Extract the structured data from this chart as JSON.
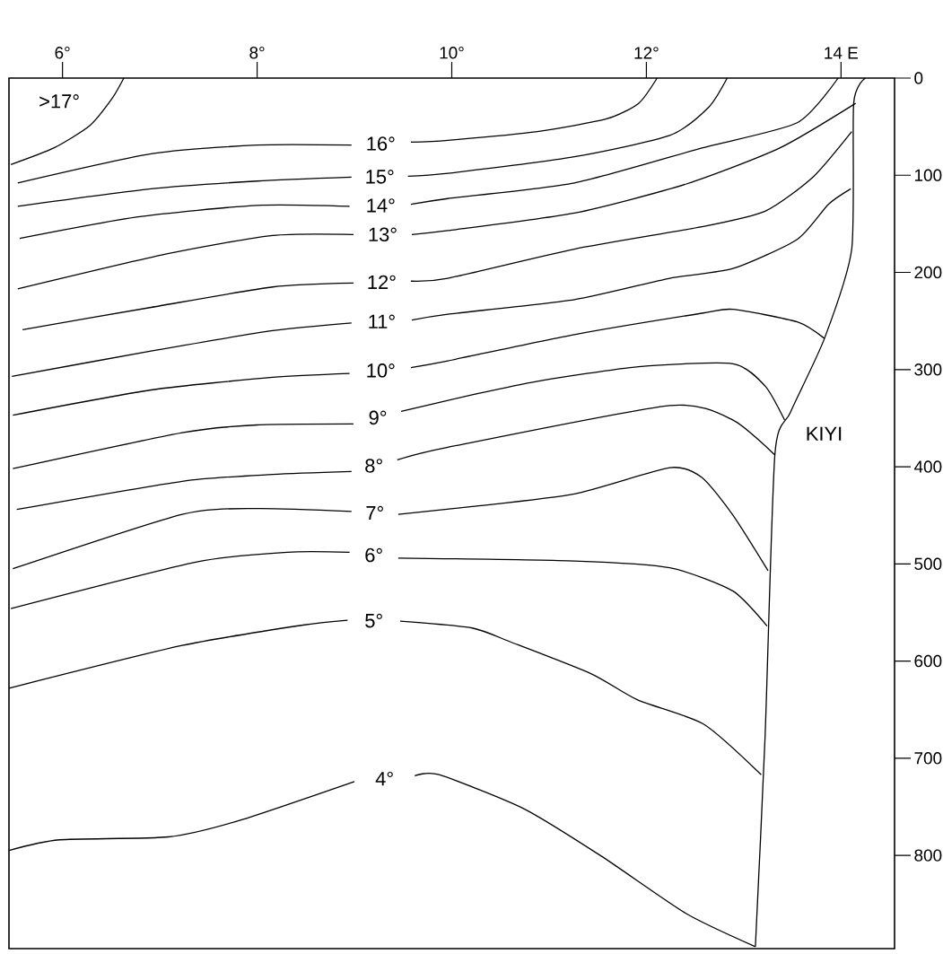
{
  "chart_data": {
    "type": "line",
    "marker": "none",
    "line_style": "solid",
    "xlim": [
      5.45,
      14.55
    ],
    "ylim": [
      896,
      0
    ],
    "xticks": [
      {
        "value": 6,
        "label": "6°"
      },
      {
        "value": 8,
        "label": "8°"
      },
      {
        "value": 10,
        "label": "10°"
      },
      {
        "value": 12,
        "label": "12°"
      },
      {
        "value": 14,
        "label": "14 E"
      }
    ],
    "yticks": [
      0,
      100,
      200,
      300,
      400,
      500,
      600,
      700,
      800
    ],
    "annotations": [
      ">17°",
      "KIYI"
    ],
    "series": [
      {
        "color": "#000000",
        "x": [
          5.47,
          5.91,
          6.28,
          6.51,
          6.63
        ],
        "values": [
          89,
          72,
          49,
          21,
          0
        ]
      },
      {
        "name": "16°",
        "color": "#000000",
        "x": [
          5.54,
          6.91,
          8.0,
          8.97,
          9.27,
          9.58,
          9.96,
          10.88,
          11.59,
          11.92,
          12.11
        ],
        "values": [
          108,
          78,
          69,
          69,
          null,
          66,
          64,
          55,
          42,
          26,
          0
        ]
      },
      {
        "name": "15°",
        "color": "#000000",
        "x": [
          5.54,
          6.91,
          8.0,
          8.97,
          9.26,
          9.55,
          9.96,
          11.26,
          12.24,
          12.64,
          12.83
        ],
        "values": [
          132,
          114,
          106,
          102,
          null,
          101,
          98,
          81,
          59,
          30,
          0
        ]
      },
      {
        "name": "14°",
        "color": "#000000",
        "x": [
          5.56,
          6.76,
          8.0,
          8.95,
          9.27,
          9.58,
          9.96,
          11.26,
          12.57,
          13.55,
          13.97
        ],
        "values": [
          165,
          143,
          131,
          132,
          null,
          130,
          124,
          108,
          72,
          46,
          0
        ]
      },
      {
        "name": "13°",
        "color": "#000000",
        "x": [
          5.54,
          7.07,
          8.16,
          8.99,
          9.29,
          9.59,
          9.96,
          11.26,
          12.41,
          13.37,
          14.15
        ],
        "values": [
          217,
          181,
          162,
          161,
          null,
          161,
          157,
          139,
          109,
          72,
          26
        ]
      },
      {
        "name": "12°",
        "color": "#000000",
        "x": [
          5.59,
          6.91,
          8.16,
          8.99,
          9.28,
          9.58,
          9.96,
          11.26,
          12.57,
          13.22,
          13.71,
          14.11
        ],
        "values": [
          259,
          236,
          215,
          211,
          null,
          209,
          206,
          176,
          153,
          137,
          102,
          55
        ]
      },
      {
        "name": "11°",
        "color": "#000000",
        "x": [
          5.48,
          6.91,
          8.16,
          8.97,
          9.28,
          9.59,
          9.96,
          11.26,
          12.24,
          12.89,
          13.55,
          13.87,
          14.1
        ],
        "values": [
          307,
          281,
          260,
          252,
          null,
          249,
          243,
          228,
          206,
          196,
          166,
          130,
          114
        ]
      },
      {
        "name": "10°",
        "color": "#000000",
        "x": [
          5.49,
          6.91,
          8.16,
          8.95,
          9.27,
          9.58,
          9.96,
          11.26,
          12.57,
          12.89,
          13.55,
          13.83
        ],
        "values": [
          347,
          321,
          308,
          304,
          null,
          298,
          291,
          264,
          242,
          238,
          251,
          268
        ]
      },
      {
        "name": "9°",
        "color": "#000000",
        "x": [
          5.49,
          7.23,
          8.0,
          8.99,
          9.24,
          9.48,
          10.21,
          10.88,
          11.92,
          12.89,
          13.22,
          13.42
        ],
        "values": [
          402,
          365,
          357,
          356,
          null,
          343,
          326,
          312,
          297,
          294,
          317,
          352
        ]
      },
      {
        "name": "8°",
        "color": "#000000",
        "x": [
          5.53,
          7.23,
          8.16,
          8.97,
          9.2,
          9.44,
          9.96,
          12.24,
          12.89,
          13.32
        ],
        "values": [
          444,
          415,
          408,
          405,
          null,
          393,
          380,
          337,
          352,
          388
        ]
      },
      {
        "name": "7°",
        "color": "#000000",
        "x": [
          5.49,
          7.23,
          8.0,
          8.97,
          9.21,
          9.45,
          10.21,
          11.26,
          12.24,
          12.57,
          12.89,
          13.25
        ],
        "values": [
          505,
          449,
          443,
          446,
          null,
          449,
          441,
          428,
          401,
          411,
          450,
          507
        ]
      },
      {
        "name": "6°",
        "color": "#000000",
        "x": [
          5.47,
          7.38,
          8.31,
          8.95,
          9.2,
          9.45,
          11.26,
          12.24,
          12.89,
          13.24
        ],
        "values": [
          546,
          498,
          488,
          488,
          null,
          494,
          497,
          504,
          528,
          564
        ]
      },
      {
        "name": "5°",
        "color": "#000000",
        "x": [
          5.45,
          7.23,
          8.47,
          8.93,
          9.2,
          9.47,
          10.21,
          10.62,
          11.43,
          11.91,
          12.59,
          13.18
        ],
        "values": [
          628,
          584,
          563,
          558,
          null,
          559,
          566,
          581,
          613,
          640,
          665,
          717
        ]
      },
      {
        "name": "4°",
        "color": "#000000",
        "x": [
          5.45,
          5.97,
          7.09,
          7.82,
          9.0,
          9.31,
          9.62,
          9.87,
          10.74,
          11.54,
          12.41,
          13.12
        ],
        "values": [
          795,
          784,
          781,
          764,
          724,
          null,
          718,
          717,
          752,
          801,
          860,
          894
        ]
      },
      {
        "color": "#000000",
        "x": [
          14.25,
          14.13,
          14.11,
          13.83,
          13.48,
          13.32,
          13.22,
          13.12
        ],
        "values": [
          0,
          26,
          176,
          268,
          344,
          388,
          677,
          894
        ]
      }
    ]
  }
}
